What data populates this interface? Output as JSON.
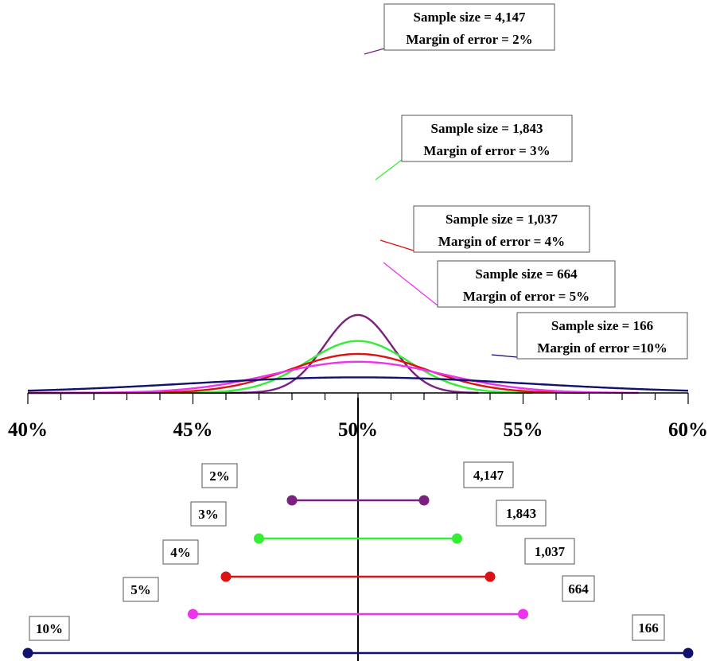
{
  "chart_data": {
    "type": "line",
    "title": "",
    "xlabel": "",
    "ylabel": "",
    "xlim": [
      40,
      60
    ],
    "x_tick_labels": [
      "40%",
      "45%",
      "50%",
      "55%",
      "60%"
    ],
    "x_ticks": [
      40,
      45,
      50,
      55,
      60
    ],
    "center": 50,
    "grid": false,
    "series": [
      {
        "sample_size": 4147,
        "margin_of_error": 2,
        "color": "#7B1F80",
        "callout_lines": [
          "Sample size = 4,147",
          "Margin of error = 2%"
        ],
        "interval_label": "2%",
        "size_label": "4,147"
      },
      {
        "sample_size": 1843,
        "margin_of_error": 3,
        "color": "#33EE33",
        "callout_lines": [
          "Sample size = 1,843",
          "Margin of error = 3%"
        ],
        "interval_label": "3%",
        "size_label": "1,843"
      },
      {
        "sample_size": 1037,
        "margin_of_error": 4,
        "color": "#DD1111",
        "callout_lines": [
          "Sample size = 1,037",
          "Margin of error = 4%"
        ],
        "interval_label": "4%",
        "size_label": "1,037"
      },
      {
        "sample_size": 664,
        "margin_of_error": 5,
        "color": "#EE33EE",
        "callout_lines": [
          "Sample size = 664",
          "Margin of error = 5%"
        ],
        "interval_label": "5%",
        "size_label": "664"
      },
      {
        "sample_size": 166,
        "margin_of_error": 10,
        "color": "#11116E",
        "callout_lines": [
          "Sample size = 166",
          "Margin of error =10%"
        ],
        "interval_label": "10%",
        "size_label": "166"
      }
    ]
  }
}
